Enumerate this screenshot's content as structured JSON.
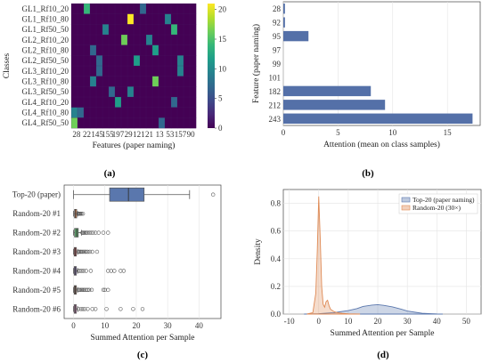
{
  "panel_labels": [
    "(a)",
    "(b)",
    "(c)",
    "(d)"
  ],
  "chart_data": [
    {
      "type": "heatmap",
      "xlabel": "Features (paper naming)",
      "ylabel": "Classes",
      "rows": [
        "GL1_Rf10_20",
        "GL1_Rf10_80",
        "GL1_Rf50_50",
        "GL2_Rf10_20",
        "GL2_Rf10_80",
        "GL2_Rf50_50",
        "GL3_Rf10_20",
        "GL3_Rf10_80",
        "GL3_Rf50_50",
        "GL4_Rf10_20",
        "GL4_Rf10_80",
        "GL4_Rf50_50"
      ],
      "x_tick_labels": [
        "28",
        "22",
        "145",
        "155",
        "197",
        "29",
        "121",
        "21",
        "13",
        "53",
        "157",
        "90"
      ],
      "columns": 20,
      "colorbar": {
        "min": 0,
        "max": 21,
        "ticks": [
          "0",
          "5",
          "10",
          "15",
          "20"
        ]
      },
      "colors": [
        "#440154",
        "#482878",
        "#3e4989",
        "#31688e",
        "#26828e",
        "#1f9e89",
        "#35b779",
        "#6ece58",
        "#b5de2b",
        "#fde725"
      ],
      "cells": [
        {
          "row": 0,
          "col": 2,
          "value": 14
        },
        {
          "row": 0,
          "col": 11,
          "value": 8
        },
        {
          "row": 1,
          "col": 9,
          "value": 21
        },
        {
          "row": 1,
          "col": 15,
          "value": 10
        },
        {
          "row": 2,
          "col": 5,
          "value": 9
        },
        {
          "row": 2,
          "col": 16,
          "value": 15
        },
        {
          "row": 3,
          "col": 8,
          "value": 17
        },
        {
          "row": 3,
          "col": 12,
          "value": 10
        },
        {
          "row": 4,
          "col": 3,
          "value": 6
        },
        {
          "row": 4,
          "col": 13,
          "value": 12
        },
        {
          "row": 5,
          "col": 4,
          "value": 8
        },
        {
          "row": 5,
          "col": 10,
          "value": 11
        },
        {
          "row": 5,
          "col": 17,
          "value": 9
        },
        {
          "row": 6,
          "col": 4,
          "value": 7
        },
        {
          "row": 6,
          "col": 17,
          "value": 9
        },
        {
          "row": 7,
          "col": 3,
          "value": 10
        },
        {
          "row": 7,
          "col": 13,
          "value": 16
        },
        {
          "row": 8,
          "col": 9,
          "value": 9
        },
        {
          "row": 8,
          "col": 6,
          "value": 6
        },
        {
          "row": 9,
          "col": 7,
          "value": 11
        },
        {
          "row": 9,
          "col": 16,
          "value": 8
        },
        {
          "row": 10,
          "col": 0,
          "value": 9
        },
        {
          "row": 10,
          "col": 1,
          "value": 7
        },
        {
          "row": 11,
          "col": 0,
          "value": 17
        },
        {
          "row": 11,
          "col": 14,
          "value": 7
        }
      ]
    },
    {
      "type": "bar",
      "orientation": "horizontal",
      "xlabel": "Attention (mean on class samples)",
      "ylabel": "Feature (paper naming)",
      "categories": [
        "28",
        "92",
        "95",
        "97",
        "99",
        "101",
        "182",
        "212",
        "243"
      ],
      "values": [
        0.15,
        0.15,
        2.3,
        0,
        0,
        0,
        8.0,
        9.3,
        17.3
      ],
      "xlim": [
        0,
        18
      ],
      "x_ticks": [
        0,
        5,
        10,
        15
      ],
      "color": "#5470a8"
    },
    {
      "type": "box",
      "xlabel": "Summed Attention per Sample",
      "categories": [
        "Top-20 (paper)",
        "Random-20 #1",
        "Random-20 #2",
        "Random-20 #3",
        "Random-20 #4",
        "Random-20 #5",
        "Random-20 #6"
      ],
      "xlim": [
        -3,
        47
      ],
      "x_ticks": [
        0,
        10,
        20,
        30,
        40
      ],
      "boxes": [
        {
          "min": 0,
          "q1": 11.5,
          "median": 17.5,
          "q3": 22.5,
          "max": 37,
          "fliers": [
            44.5
          ],
          "color": "#5a77ad"
        },
        {
          "min": 0,
          "q1": 0.3,
          "median": 0.6,
          "q3": 1,
          "max": 1.3,
          "fliers": [
            1.4,
            1.6,
            1.8,
            2.0,
            2.2,
            2.5,
            3.0
          ],
          "color": "#df8a55"
        },
        {
          "min": 0,
          "q1": 0.3,
          "median": 1.0,
          "q3": 1.5,
          "max": 2.5,
          "fliers": [
            2.8,
            3.0,
            3.3,
            3.6,
            4.0,
            4.4,
            5.0,
            5.6,
            6.2,
            7.0,
            8.0,
            9.5,
            11
          ],
          "color": "#5b9a68"
        },
        {
          "min": 0,
          "q1": 0.2,
          "median": 0.5,
          "q3": 0.9,
          "max": 1.3,
          "fliers": [
            1.5,
            1.8,
            2.1,
            2.4,
            2.8,
            3.2,
            3.6,
            4.0,
            4.5,
            5.2,
            6.0,
            7.5
          ],
          "color": "#c25a5a"
        },
        {
          "min": 0,
          "q1": 0.2,
          "median": 0.5,
          "q3": 0.9,
          "max": 1.3,
          "fliers": [
            1.5,
            2.0,
            2.6,
            3.2,
            4.0,
            5.5,
            11,
            12,
            13,
            15,
            16
          ],
          "color": "#8a76b5"
        },
        {
          "min": 0,
          "q1": 0.2,
          "median": 0.5,
          "q3": 0.9,
          "max": 1.3,
          "fliers": [
            1.5,
            1.9,
            2.3,
            2.7,
            3.1,
            3.5,
            4.0,
            4.5,
            5.0,
            5.8,
            9.5,
            10,
            11
          ],
          "color": "#94705f"
        },
        {
          "min": 0,
          "q1": 0.2,
          "median": 0.5,
          "q3": 0.9,
          "max": 1.3,
          "fliers": [
            1.6,
            2.4,
            3.0,
            3.6,
            4.5,
            6,
            7,
            10.5,
            15,
            19,
            22
          ],
          "color": "#d48fbf"
        }
      ]
    },
    {
      "type": "area",
      "xlabel": "Summed Attention per Sample",
      "ylabel": "Density",
      "xlim": [
        -12,
        55
      ],
      "ylim": [
        0,
        0.9
      ],
      "x_ticks": [
        -10,
        0,
        10,
        20,
        30,
        40,
        50
      ],
      "y_ticks": [
        0.0,
        0.2,
        0.4,
        0.6,
        0.8
      ],
      "legend_position": "top-right",
      "series": [
        {
          "name": "Top-20 (paper naming)",
          "color": "#5a77ad",
          "x": [
            -5,
            0,
            5,
            10,
            13,
            15,
            18,
            20,
            22,
            25,
            28,
            30,
            33,
            35,
            38,
            40,
            42
          ],
          "y": [
            0.0,
            0.003,
            0.01,
            0.025,
            0.04,
            0.055,
            0.065,
            0.068,
            0.063,
            0.052,
            0.035,
            0.022,
            0.012,
            0.006,
            0.003,
            0.001,
            0.0
          ]
        },
        {
          "name": "Random-20 (30×)",
          "color": "#df8a55",
          "x": [
            -4,
            -2,
            -1,
            -0.5,
            0,
            0.5,
            1,
            1.5,
            2,
            2.5,
            3,
            3.5,
            4,
            5,
            6,
            7,
            8,
            10,
            12,
            14
          ],
          "y": [
            0.0,
            0.01,
            0.15,
            0.45,
            0.85,
            0.55,
            0.2,
            0.07,
            0.05,
            0.09,
            0.1,
            0.06,
            0.035,
            0.02,
            0.012,
            0.008,
            0.005,
            0.002,
            0.001,
            0.0
          ]
        }
      ]
    }
  ]
}
